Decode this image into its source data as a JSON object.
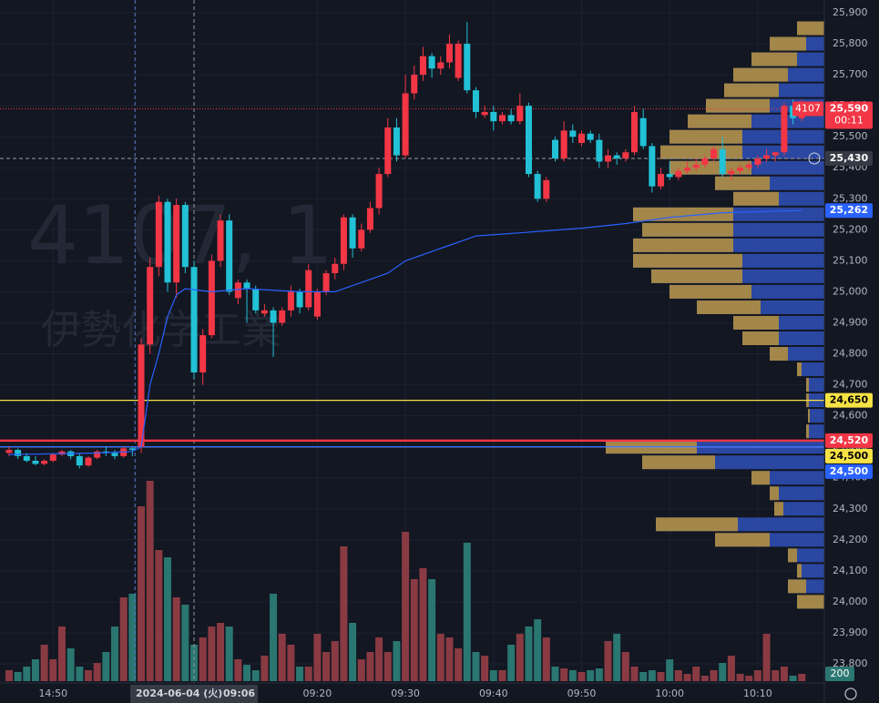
{
  "chart_data": {
    "type": "candlestick",
    "watermark": {
      "symbol": "4107, 1",
      "name": "伊勢化学工業"
    },
    "x": [
      -15,
      -14,
      -13,
      -12,
      -11,
      -10,
      -9,
      -8,
      -7,
      -6,
      -5,
      -4,
      -3,
      -2,
      -1,
      0,
      1,
      2,
      3,
      4,
      5,
      6,
      7,
      8,
      9,
      10,
      11,
      12,
      13,
      14,
      15,
      16,
      17,
      18,
      19,
      20,
      21,
      22,
      23,
      24,
      25,
      26,
      27,
      28,
      29,
      30,
      31,
      32,
      33,
      34,
      35,
      36,
      37,
      38,
      39,
      40,
      41,
      42,
      43,
      44,
      45,
      46,
      47,
      48,
      49,
      50,
      51,
      52,
      53,
      54,
      55,
      56,
      57,
      58,
      59,
      60,
      61,
      62,
      63,
      64,
      65,
      66,
      67,
      68,
      69,
      70,
      71,
      72,
      73,
      74,
      75
    ],
    "open": [
      24480,
      24490,
      24470,
      24455,
      24445,
      24455,
      24475,
      24485,
      24470,
      24440,
      24465,
      24485,
      24480,
      24470,
      24495,
      24500,
      24830,
      25080,
      25290,
      25030,
      25280,
      25080,
      24740,
      24860,
      25100,
      25230,
      24980,
      25030,
      25010,
      24930,
      24940,
      24900,
      24940,
      25000,
      24950,
      24920,
      25000,
      25060,
      25090,
      25240,
      25140,
      25200,
      25270,
      25380,
      25530,
      25440,
      25640,
      25700,
      25760,
      25720,
      25740,
      25690,
      25800,
      25650,
      25570,
      25580,
      25550,
      25570,
      25550,
      25600,
      25380,
      25300,
      25490,
      25430,
      25520,
      25480,
      25510,
      25490,
      25420,
      25440,
      25430,
      25450,
      25560,
      25470,
      25340,
      25380,
      25370,
      25390,
      25400,
      25410,
      25430,
      25460,
      25380,
      25390,
      25400,
      25410,
      25430,
      25440,
      25450,
      25600,
      25560
    ],
    "high": [
      24500,
      24495,
      24480,
      24470,
      24460,
      24480,
      24490,
      24490,
      24480,
      24470,
      24490,
      24500,
      24490,
      24500,
      24500,
      24850,
      25110,
      25310,
      25300,
      25300,
      25290,
      25100,
      24880,
      25120,
      25250,
      25250,
      25040,
      25040,
      25020,
      24960,
      24950,
      24950,
      25020,
      25010,
      25090,
      25010,
      25070,
      25110,
      25250,
      25250,
      25220,
      25290,
      25400,
      25560,
      25560,
      25700,
      25730,
      25790,
      25770,
      25760,
      25830,
      25810,
      25870,
      25660,
      25600,
      25600,
      25580,
      25590,
      25640,
      25610,
      25390,
      25370,
      25500,
      25550,
      25540,
      25520,
      25520,
      25510,
      25460,
      25450,
      25460,
      25600,
      25590,
      25480,
      25400,
      25420,
      25400,
      25420,
      25430,
      25440,
      25470,
      25500,
      25400,
      25410,
      25420,
      25440,
      25460,
      25450,
      25610,
      25620,
      25620
    ],
    "low": [
      24470,
      24460,
      24450,
      24440,
      24440,
      24450,
      24470,
      24460,
      24430,
      24435,
      24460,
      24470,
      24460,
      24465,
      24470,
      24480,
      24800,
      25050,
      25000,
      24980,
      25060,
      24720,
      24700,
      24850,
      25080,
      24990,
      24960,
      24900,
      24930,
      24920,
      24790,
      24890,
      24920,
      24930,
      24940,
      24910,
      24990,
      25040,
      25070,
      25110,
      25130,
      25190,
      25250,
      25370,
      25420,
      25430,
      25620,
      25680,
      25690,
      25700,
      25720,
      25680,
      25640,
      25560,
      25560,
      25520,
      25540,
      25540,
      25540,
      25370,
      25290,
      25290,
      25420,
      25420,
      25480,
      25470,
      25480,
      25400,
      25400,
      25410,
      25420,
      25440,
      25460,
      25320,
      25330,
      25360,
      25360,
      25380,
      25390,
      25400,
      25420,
      25370,
      25360,
      25380,
      25390,
      25400,
      25420,
      25420,
      25440,
      25540,
      25550
    ],
    "close": [
      24490,
      24470,
      24455,
      24445,
      24455,
      24475,
      24485,
      24470,
      24440,
      24465,
      24485,
      24480,
      24470,
      24495,
      24490,
      24830,
      25080,
      25290,
      25030,
      25280,
      25080,
      24740,
      24860,
      25100,
      25230,
      25000,
      25030,
      25010,
      24940,
      24940,
      24900,
      24940,
      25000,
      24950,
      25070,
      25000,
      25060,
      25090,
      25240,
      25140,
      25200,
      25270,
      25380,
      25530,
      25440,
      25640,
      25700,
      25760,
      25720,
      25740,
      25800,
      25800,
      25650,
      25580,
      25580,
      25550,
      25570,
      25550,
      25600,
      25380,
      25300,
      25360,
      25430,
      25520,
      25500,
      25510,
      25490,
      25420,
      25440,
      25430,
      25450,
      25580,
      25470,
      25340,
      25380,
      25370,
      25390,
      25400,
      25410,
      25430,
      25460,
      25380,
      25390,
      25400,
      25410,
      25430,
      25440,
      25450,
      25600,
      25560,
      25590
    ],
    "volume": [
      300,
      250,
      400,
      600,
      1000,
      600,
      1500,
      900,
      400,
      300,
      500,
      800,
      1500,
      2300,
      2400,
      4800,
      5500,
      3600,
      3400,
      2300,
      2100,
      1000,
      1200,
      1500,
      1600,
      1500,
      600,
      450,
      300,
      700,
      2400,
      1300,
      1000,
      400,
      400,
      1300,
      800,
      1100,
      3700,
      1600,
      600,
      800,
      1200,
      800,
      1100,
      4100,
      2800,
      3100,
      2800,
      1300,
      1200,
      900,
      3800,
      800,
      700,
      300,
      300,
      1000,
      1300,
      1500,
      1700,
      1200,
      400,
      350,
      300,
      250,
      300,
      350,
      1100,
      1300,
      800,
      400,
      250,
      300,
      250,
      600,
      300,
      200,
      400,
      150,
      300,
      500,
      700,
      200,
      150,
      300,
      1300,
      300,
      400,
      150,
      200
    ],
    "volume_max": 5500,
    "up_color": "#f23645",
    "down_color": "#22c1d6",
    "volume_up_color": "#8a3a42",
    "volume_down_color": "#2a7670",
    "vwap": {
      "color": "#2962ff",
      "x": [
        -15,
        -5,
        -1,
        0,
        1,
        2,
        3,
        4,
        5,
        8,
        12,
        18,
        22,
        25,
        28,
        30,
        33,
        36,
        38,
        43,
        50,
        55,
        60,
        66,
        75
      ],
      "values": [
        24475,
        24480,
        24485,
        24500,
        24700,
        24800,
        24920,
        24990,
        25010,
        25000,
        25010,
        25000,
        25000,
        25030,
        25060,
        25100,
        25130,
        25160,
        25180,
        25190,
        25205,
        25220,
        25240,
        25255,
        25262
      ]
    },
    "profile": {
      "blue": "#2f50b8",
      "gold": "#b8923a",
      "levels": [
        25850,
        25800,
        25750,
        25700,
        25650,
        25600,
        25550,
        25500,
        25450,
        25400,
        25350,
        25300,
        25250,
        25200,
        25150,
        25100,
        25050,
        25000,
        24950,
        24900,
        24850,
        24800,
        24750,
        24700,
        24650,
        24600,
        24550,
        24500,
        24450,
        24400,
        24350,
        24300,
        24250,
        24200,
        24150,
        24100,
        24050,
        24000
      ],
      "total": [
        30,
        60,
        80,
        100,
        110,
        130,
        150,
        170,
        180,
        170,
        120,
        100,
        210,
        200,
        210,
        210,
        190,
        170,
        140,
        100,
        90,
        60,
        30,
        20,
        20,
        18,
        20,
        240,
        200,
        80,
        60,
        55,
        185,
        120,
        40,
        30,
        40,
        30
      ],
      "up": [
        30,
        40,
        50,
        60,
        60,
        70,
        70,
        80,
        90,
        90,
        60,
        50,
        110,
        100,
        110,
        120,
        100,
        90,
        70,
        50,
        40,
        20,
        5,
        3,
        3,
        2,
        3,
        100,
        80,
        20,
        10,
        10,
        90,
        60,
        10,
        5,
        20,
        30
      ]
    },
    "ylim": [
      23800,
      25900
    ],
    "yticks": [
      {
        "value": 23800,
        "label": "23,800"
      },
      {
        "value": 23900,
        "label": "23,900"
      },
      {
        "value": 24000,
        "label": "24,000"
      },
      {
        "value": 24100,
        "label": "24,100"
      },
      {
        "value": 24200,
        "label": "24,200"
      },
      {
        "value": 24300,
        "label": "24,300"
      },
      {
        "value": 24400,
        "label": "24,400"
      },
      {
        "value": 24500,
        "label": "24,500"
      },
      {
        "value": 24600,
        "label": "24,600"
      },
      {
        "value": 24700,
        "label": "24,700"
      },
      {
        "value": 24800,
        "label": "24,800"
      },
      {
        "value": 24900,
        "label": "24,900"
      },
      {
        "value": 25000,
        "label": "25,000"
      },
      {
        "value": 25100,
        "label": "25,100"
      },
      {
        "value": 25200,
        "label": "25,200"
      },
      {
        "value": 25300,
        "label": "25,300"
      },
      {
        "value": 25400,
        "label": "25,400"
      },
      {
        "value": 25500,
        "label": "25,500"
      },
      {
        "value": 25600,
        "label": "25,600"
      },
      {
        "value": 25700,
        "label": "25,700"
      },
      {
        "value": 25800,
        "label": "25,800"
      },
      {
        "value": 25900,
        "label": "25,900"
      }
    ],
    "xticks": [
      {
        "value": -10,
        "label": "14:50"
      },
      {
        "value": 20,
        "label": "09:20"
      },
      {
        "value": 30,
        "label": "09:30"
      },
      {
        "value": 40,
        "label": "09:40"
      },
      {
        "value": 50,
        "label": "09:50"
      },
      {
        "value": 60,
        "label": "10:00"
      },
      {
        "value": 70,
        "label": "10:10"
      }
    ],
    "session_break": -0.7,
    "crosshair": {
      "x": 6,
      "date": "2024-06-04 (火)",
      "time": "09:06",
      "price": 25430,
      "price_label": "25,430"
    },
    "last_price": {
      "value": 25590,
      "label": "25,590",
      "countdown": "00:11",
      "symbol": "4107",
      "color": "#f23645"
    },
    "price_labels": [
      {
        "value": 25262,
        "label": "25,262",
        "bg": "#2962ff",
        "fg": "#ffffff"
      },
      {
        "value": 24650,
        "label": "24,650",
        "bg": "#f7e244",
        "fg": "#000000",
        "line": "#f7e244"
      },
      {
        "value": 24520,
        "label": "24,520",
        "bg": "#f23645",
        "fg": "#ffffff",
        "line": "#f23645"
      },
      {
        "value": 24500,
        "label": "24,500",
        "bg": "#f7e244",
        "fg": "#000000",
        "line": "#ffffff"
      },
      {
        "value": 24500,
        "label": "24,500",
        "bg": "#2962ff",
        "fg": "#ffffff",
        "line": "#2962ff"
      }
    ]
  }
}
